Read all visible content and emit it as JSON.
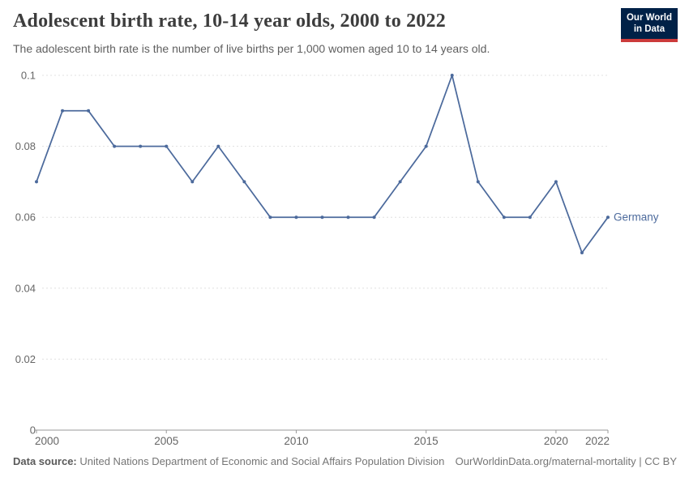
{
  "header": {
    "title": "Adolescent birth rate, 10-14 year olds, 2000 to 2022",
    "subtitle": "The adolescent birth rate is the number of live births per 1,000 women aged 10 to 14 years old.",
    "logo": {
      "line1": "Our World",
      "line2": "in Data",
      "bg_color": "#002147",
      "stripe_color": "#cc3b3b"
    }
  },
  "chart_data": {
    "type": "line",
    "title": "Adolescent birth rate, 10-14 year olds, 2000 to 2022",
    "xlabel": "",
    "ylabel": "",
    "xlim": [
      2000,
      2022
    ],
    "ylim": [
      0,
      0.1
    ],
    "x_ticks": [
      2000,
      2005,
      2010,
      2015,
      2020,
      2022
    ],
    "y_ticks": [
      0,
      0.02,
      0.04,
      0.06,
      0.08,
      0.1
    ],
    "y_tick_labels": [
      "0",
      "0.02",
      "0.04",
      "0.06",
      "0.08",
      "0.1"
    ],
    "grid": "horizontal-dashed",
    "grid_color": "#e0e0e0",
    "axis_color": "#999999",
    "tick_label_color": "#666666",
    "legend_position": "end-of-line",
    "series": [
      {
        "name": "Germany",
        "color": "#4c6a9c",
        "x": [
          2000,
          2001,
          2002,
          2003,
          2004,
          2005,
          2006,
          2007,
          2008,
          2009,
          2010,
          2011,
          2012,
          2013,
          2014,
          2015,
          2016,
          2017,
          2018,
          2019,
          2020,
          2021,
          2022
        ],
        "values": [
          0.07,
          0.09,
          0.09,
          0.08,
          0.08,
          0.08,
          0.07,
          0.08,
          0.07,
          0.06,
          0.06,
          0.06,
          0.06,
          0.06,
          0.07,
          0.08,
          0.1,
          0.07,
          0.06,
          0.06,
          0.07,
          0.05,
          0.06
        ]
      }
    ]
  },
  "footer": {
    "source_label": "Data source:",
    "source_text": " United Nations Department of Economic and Social Affairs Population Division",
    "link_text": "OurWorldinData.org/maternal-mortality | CC BY"
  }
}
